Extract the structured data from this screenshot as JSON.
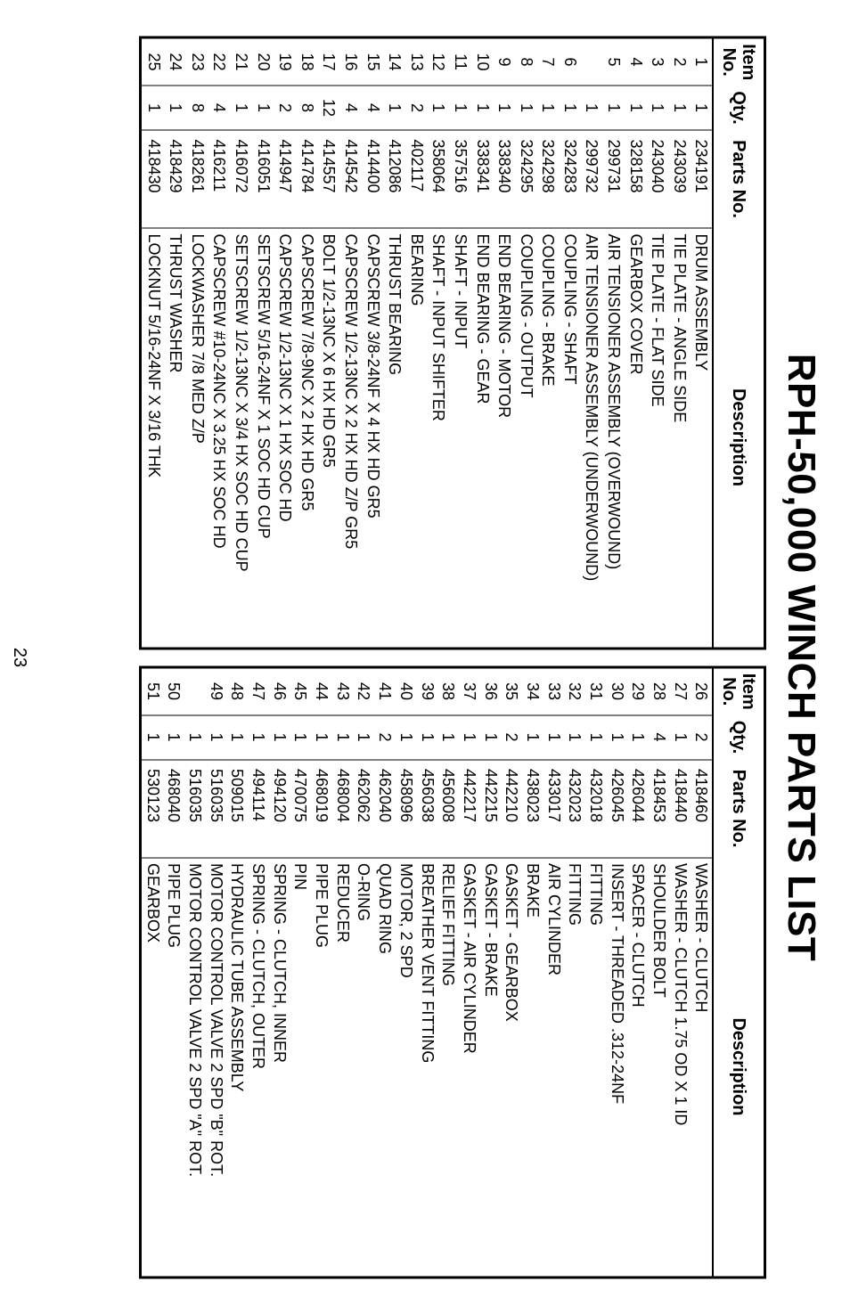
{
  "title": "RPH-50,000 WINCH PARTS LIST",
  "page_number": "23",
  "columns": [
    {
      "key": "item",
      "label_html": "Item<br>No."
    },
    {
      "key": "qty",
      "label_html": "Qty."
    },
    {
      "key": "part",
      "label_html": "Parts No."
    },
    {
      "key": "desc",
      "label_html": "Description"
    }
  ],
  "left_rows": [
    {
      "item": "1",
      "qty": "1",
      "part": "234191",
      "desc": "DRUM ASSEMBLY"
    },
    {
      "item": "2",
      "qty": "1",
      "part": "243039",
      "desc": "TIE PLATE - ANGLE SIDE"
    },
    {
      "item": "3",
      "qty": "1",
      "part": "243040",
      "desc": "TIE PLATE - FLAT SIDE"
    },
    {
      "item": "4",
      "qty": "1",
      "part": "328158",
      "desc": "GEARBOX COVER"
    },
    {
      "item": "5",
      "qty": "1",
      "part": "299731",
      "desc": "AIR TENSIONER ASSEMBLY (OVERWOUND)"
    },
    {
      "item": "",
      "qty": "1",
      "part": "299732",
      "desc": "AIR TENSIONER ASSEMBLY (UNDERWOUND)"
    },
    {
      "item": "6",
      "qty": "1",
      "part": "324283",
      "desc": "COUPLING - SHAFT"
    },
    {
      "item": "7",
      "qty": "1",
      "part": "324298",
      "desc": "COUPLING - BRAKE"
    },
    {
      "item": "8",
      "qty": "1",
      "part": "324295",
      "desc": "COUPLING - OUTPUT"
    },
    {
      "item": "9",
      "qty": "1",
      "part": "338340",
      "desc": "END BEARING - MOTOR"
    },
    {
      "item": "10",
      "qty": "1",
      "part": "338341",
      "desc": "END BEARING - GEAR"
    },
    {
      "item": "11",
      "qty": "1",
      "part": "357516",
      "desc": "SHAFT - INPUT"
    },
    {
      "item": "12",
      "qty": "1",
      "part": "358064",
      "desc": "SHAFT - INPUT SHIFTER"
    },
    {
      "item": "13",
      "qty": "2",
      "part": "402117",
      "desc": "BEARING"
    },
    {
      "item": "14",
      "qty": "1",
      "part": "412086",
      "desc": "THRUST BEARING"
    },
    {
      "item": "15",
      "qty": "4",
      "part": "414400",
      "desc": "CAPSCREW 3/8-24NF X 4 HX HD GR5"
    },
    {
      "item": "16",
      "qty": "4",
      "part": "414542",
      "desc": "CAPSCREW 1/2-13NC X 2 HX HD Z/P GR5"
    },
    {
      "item": "17",
      "qty": "12",
      "part": "414557",
      "desc": "BOLT 1/2-13NC X 6 HX HD GR5"
    },
    {
      "item": "18",
      "qty": "8",
      "part": "414784",
      "desc": "CAPSCREW 7/8-9NC X 2 HX HD GR5"
    },
    {
      "item": "19",
      "qty": "2",
      "part": "414947",
      "desc": "CAPSCREW 1/2-13NC X 1 HX SOC HD"
    },
    {
      "item": "20",
      "qty": "1",
      "part": "416051",
      "desc": "SETSCREW 5/16-24NF X 1 SOC HD CUP"
    },
    {
      "item": "21",
      "qty": "1",
      "part": "416072",
      "desc": "SETSCREW 1/2-13NC X 3/4 HX SOC HD CUP"
    },
    {
      "item": "22",
      "qty": "4",
      "part": "416211",
      "desc": "CAPSCREW #10-24NC X 3.25 HX SOC HD"
    },
    {
      "item": "23",
      "qty": "8",
      "part": "418261",
      "desc": "LOCKWASHER 7/8 MED Z/P"
    },
    {
      "item": "24",
      "qty": "1",
      "part": "418429",
      "desc": "THRUST WASHER"
    },
    {
      "item": "25",
      "qty": "1",
      "part": "418430",
      "desc": "LOCKNUT 5/16-24NF X 3/16 THK"
    }
  ],
  "right_rows": [
    {
      "item": "26",
      "qty": "2",
      "part": "418460",
      "desc": "WASHER - CLUTCH"
    },
    {
      "item": "27",
      "qty": "1",
      "part": "418440",
      "desc": "WASHER - CLUTCH 1.75 OD X 1 ID"
    },
    {
      "item": "28",
      "qty": "4",
      "part": "418453",
      "desc": "SHOULDER BOLT"
    },
    {
      "item": "29",
      "qty": "1",
      "part": "426044",
      "desc": "SPACER - CLUTCH"
    },
    {
      "item": "30",
      "qty": "1",
      "part": "426045",
      "desc": "INSERT - THREADED .312-24NF"
    },
    {
      "item": "31",
      "qty": "1",
      "part": "432018",
      "desc": "FITTING"
    },
    {
      "item": "32",
      "qty": "1",
      "part": "432023",
      "desc": "FITTING"
    },
    {
      "item": "33",
      "qty": "1",
      "part": "433017",
      "desc": "AIR CYLINDER"
    },
    {
      "item": "34",
      "qty": "1",
      "part": "438023",
      "desc": "BRAKE"
    },
    {
      "item": "35",
      "qty": "2",
      "part": "442210",
      "desc": "GASKET - GEARBOX"
    },
    {
      "item": "36",
      "qty": "1",
      "part": "442215",
      "desc": "GASKET - BRAKE"
    },
    {
      "item": "37",
      "qty": "1",
      "part": "442217",
      "desc": "GASKET - AIR CYLINDER"
    },
    {
      "item": "38",
      "qty": "1",
      "part": "456008",
      "desc": "RELIEF FITTING"
    },
    {
      "item": "39",
      "qty": "1",
      "part": "456038",
      "desc": "BREATHER VENT FITTING"
    },
    {
      "item": "40",
      "qty": "1",
      "part": "458096",
      "desc": "MOTOR, 2 SPD"
    },
    {
      "item": "41",
      "qty": "2",
      "part": "462040",
      "desc": "QUAD RING"
    },
    {
      "item": "42",
      "qty": "1",
      "part": "462062",
      "desc": "O-RING"
    },
    {
      "item": "43",
      "qty": "1",
      "part": "468004",
      "desc": "REDUCER"
    },
    {
      "item": "44",
      "qty": "1",
      "part": "468019",
      "desc": "PIPE PLUG"
    },
    {
      "item": "45",
      "qty": "1",
      "part": "470075",
      "desc": "PIN"
    },
    {
      "item": "46",
      "qty": "1",
      "part": "494120",
      "desc": "SPRING - CLUTCH, INNER"
    },
    {
      "item": "47",
      "qty": "1",
      "part": "494114",
      "desc": "SPRING - CLUTCH, OUTER"
    },
    {
      "item": "48",
      "qty": "1",
      "part": "509015",
      "desc": "HYDRAULIC TUBE ASSEMBLY"
    },
    {
      "item": "49",
      "qty": "1",
      "part": "516035",
      "desc": "MOTOR CONTROL VALVE 2 SPD \"B\" ROT."
    },
    {
      "item": "",
      "qty": "1",
      "part": "516035",
      "desc": "MOTOR CONTROL VALVE 2 SPD \"A\" ROT."
    },
    {
      "item": "50",
      "qty": "1",
      "part": "468040",
      "desc": "PIPE PLUG"
    },
    {
      "item": "51",
      "qty": "1",
      "part": "530123",
      "desc": "GEARBOX"
    }
  ],
  "style": {
    "text_color": "#000000",
    "background_color": "#ffffff",
    "border_color": "#000000",
    "title_fontsize": 44,
    "header_fontsize": 20,
    "body_fontsize": 18
  }
}
